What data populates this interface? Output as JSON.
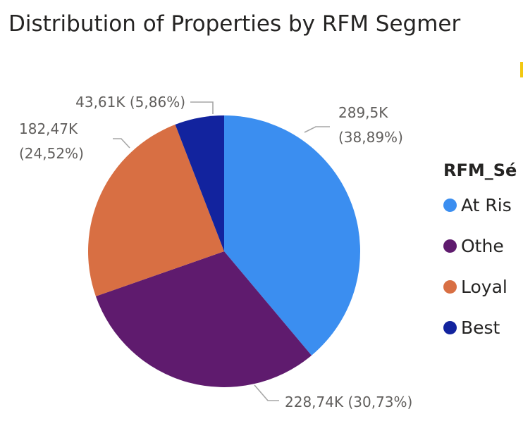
{
  "visual": {
    "title": "Distribution of Properties by RFM Segmer"
  },
  "legend": {
    "title": "RFM_Sé",
    "items": [
      {
        "label": "At Ris",
        "color": "#3b8ef0"
      },
      {
        "label": "Othe",
        "color": "#5f1b6e"
      },
      {
        "label": "Loyal",
        "color": "#d86f43"
      },
      {
        "label": "Best",
        "color": "#12239e"
      }
    ]
  },
  "chart_data": {
    "type": "pie",
    "title": "Distribution of Properties by RFM Segmer",
    "legend_title": "RFM_Sé",
    "legend_position": "right",
    "slices": [
      {
        "name": "At Ris",
        "value": 289.5,
        "percent": 38.89,
        "value_label": "289,5K",
        "percent_label": "(38,89%)",
        "color": "#3b8ef0"
      },
      {
        "name": "Othe",
        "value": 228.74,
        "percent": 30.73,
        "value_label": "228,74K",
        "percent_label": "(30,73%)",
        "color": "#5f1b6e"
      },
      {
        "name": "Loyal",
        "value": 182.47,
        "percent": 24.52,
        "value_label": "182,47K",
        "percent_label": "(24,52%)",
        "color": "#d86f43"
      },
      {
        "name": "Best",
        "value": 43.61,
        "percent": 5.86,
        "value_label": "43,61K",
        "percent_label": "(5,86%)",
        "color": "#12239e"
      }
    ]
  }
}
